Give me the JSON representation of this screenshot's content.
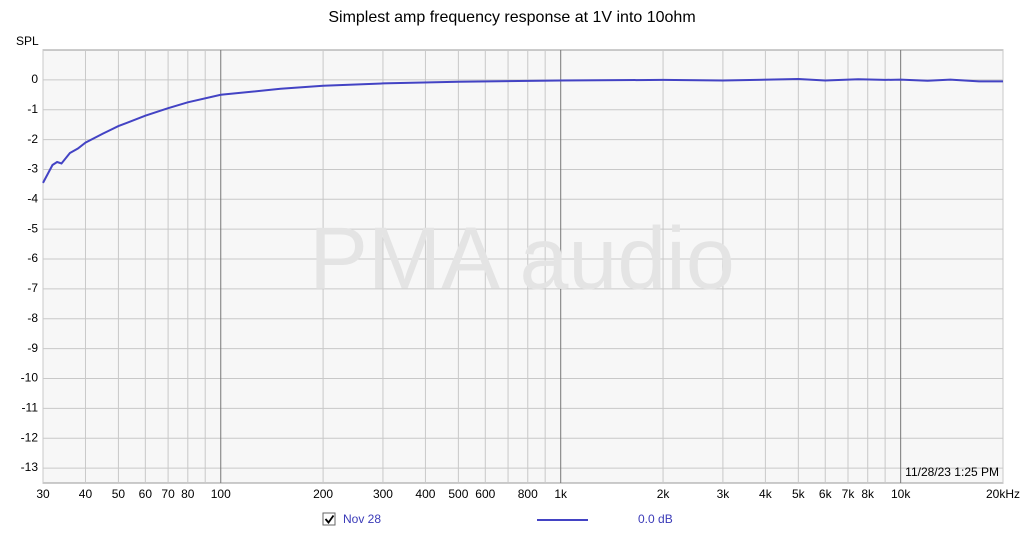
{
  "chart_data": {
    "type": "line",
    "title": "Simplest amp frequency response at 1V into 10ohm",
    "y_label": "SPL",
    "watermark": "PMA audio",
    "timestamp": "11/28/23 1:25 PM",
    "x_scale": "log",
    "grid": true,
    "xlim": [
      30,
      20000
    ],
    "ylim": [
      -13.5,
      1
    ],
    "xticks": [
      30,
      40,
      50,
      60,
      70,
      80,
      100,
      200,
      300,
      400,
      500,
      600,
      800,
      {
        "value": 1000,
        "label": "1k"
      },
      {
        "value": 2000,
        "label": "2k"
      },
      {
        "value": 3000,
        "label": "3k"
      },
      {
        "value": 4000,
        "label": "4k"
      },
      {
        "value": 5000,
        "label": "5k"
      },
      {
        "value": 6000,
        "label": "6k"
      },
      {
        "value": 7000,
        "label": "7k"
      },
      {
        "value": 8000,
        "label": "8k"
      },
      {
        "value": 10000,
        "label": "10k"
      },
      {
        "value": 20000,
        "label": "20kHz"
      }
    ],
    "xminor": [
      90,
      700,
      900,
      9000
    ],
    "yticks": [
      0,
      -1,
      -2,
      -3,
      -4,
      -5,
      -6,
      -7,
      -8,
      -9,
      -10,
      -11,
      -12,
      -13
    ],
    "series": [
      {
        "name": "Nov 28",
        "legend_value": "0.0 dB",
        "color": "#4343c4",
        "x": [
          30,
          32,
          33,
          34,
          36,
          38,
          40,
          45,
          50,
          60,
          70,
          80,
          100,
          150,
          200,
          300,
          500,
          1000,
          2000,
          3000,
          5000,
          6000,
          7500,
          9000,
          10000,
          12000,
          14000,
          17000,
          20000
        ],
        "values": [
          -3.45,
          -2.85,
          -2.75,
          -2.8,
          -2.45,
          -2.3,
          -2.1,
          -1.8,
          -1.55,
          -1.2,
          -0.95,
          -0.75,
          -0.5,
          -0.3,
          -0.2,
          -0.12,
          -0.06,
          -0.02,
          0,
          -0.02,
          0.03,
          -0.02,
          0.02,
          0,
          0.01,
          -0.03,
          0.01,
          -0.05,
          -0.05
        ]
      }
    ]
  }
}
